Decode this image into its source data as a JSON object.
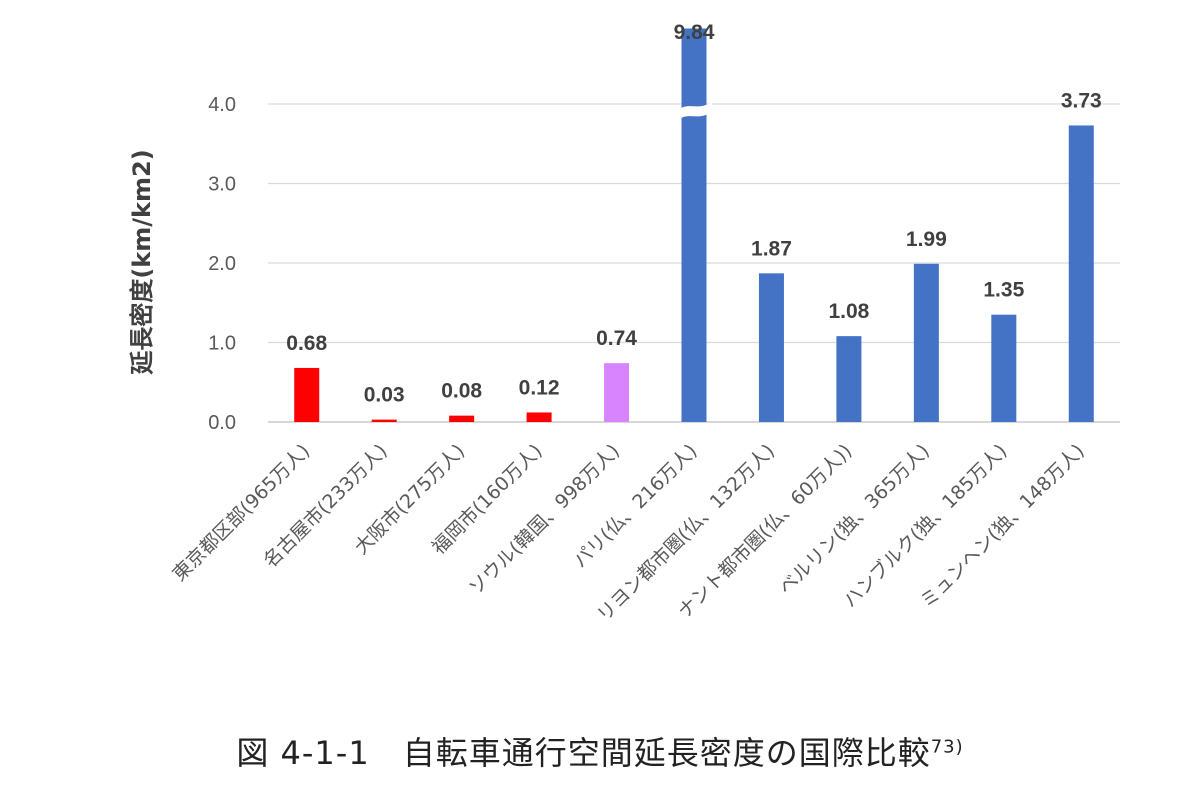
{
  "chart_data": {
    "type": "bar",
    "ylabel": "延長密度(km/km2)",
    "ylim": [
      0,
      4.0
    ],
    "yticks": [
      "0.0",
      "1.0",
      "2.0",
      "3.0",
      "4.0"
    ],
    "grid": true,
    "categories": [
      "東京都区部(965万人)",
      "名古屋市(233万人)",
      "大阪市(275万人)",
      "福岡市(160万人)",
      "ソウル(韓国、998万人)",
      "パリ(仏、216万人)",
      "リヨン都市圏(仏、132万人)",
      "ナント都市圏(仏、60万人))",
      "ベルリン(独、365万人)",
      "ハンブルク(独、185万人)",
      "ミュンヘン(独、148万人)"
    ],
    "values": [
      0.68,
      0.03,
      0.08,
      0.12,
      0.74,
      9.84,
      1.87,
      1.08,
      1.99,
      1.35,
      3.73
    ],
    "value_labels": [
      "0.68",
      "0.03",
      "0.08",
      "0.12",
      "0.74",
      "9.84",
      "1.87",
      "1.08",
      "1.99",
      "1.35",
      "3.73"
    ],
    "colors": [
      "#ff0000",
      "#ff0000",
      "#ff0000",
      "#ff0000",
      "#d884ff",
      "#4472c4",
      "#4472c4",
      "#4472c4",
      "#4472c4",
      "#4472c4",
      "#4472c4"
    ],
    "axis_break_on": "パリ(仏、216万人)"
  },
  "caption": {
    "text": "図 4-1-1　自転車通行空間延長密度の国際比較",
    "ref": "73)"
  }
}
